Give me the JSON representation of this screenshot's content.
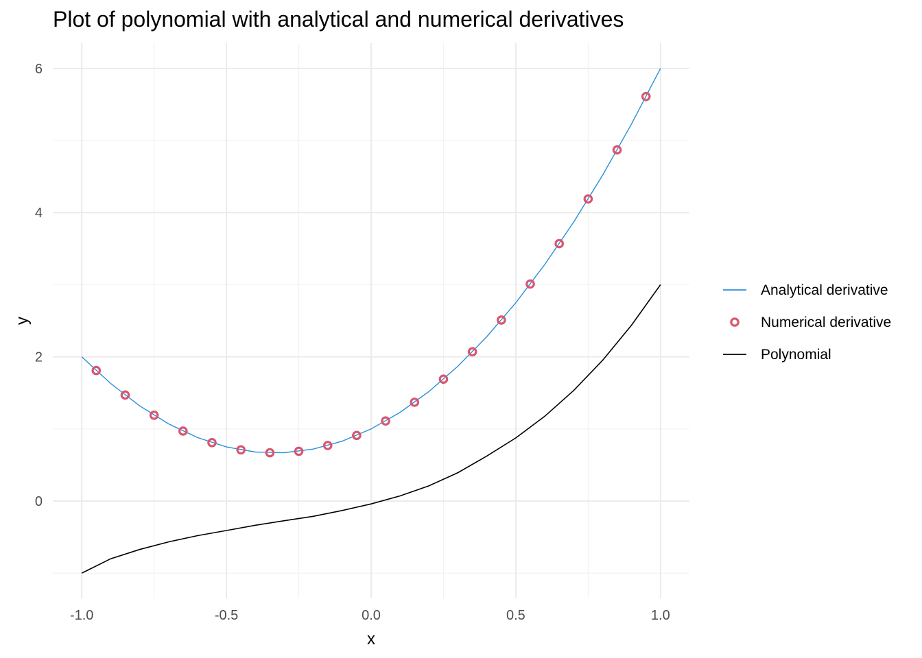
{
  "chart_data": {
    "type": "line",
    "title": "Plot of polynomial with analytical and numerical derivatives",
    "xlabel": "x",
    "ylabel": "y",
    "xlim": [
      -1.1,
      1.1
    ],
    "ylim": [
      -1.35,
      6.35
    ],
    "x_ticks": [
      -1.0,
      -0.5,
      0.0,
      0.5,
      1.0
    ],
    "x_tick_labels": [
      "-1.0",
      "-0.5",
      "0.0",
      "0.5",
      "1.0"
    ],
    "y_ticks": [
      0,
      2,
      4,
      6
    ],
    "y_tick_labels": [
      "0",
      "2",
      "4",
      "6"
    ],
    "grid": true,
    "legend_position": "right",
    "series": [
      {
        "name": "Analytical derivative",
        "kind": "line",
        "color": "#2b8fd6",
        "x": [
          -1.0,
          -0.9,
          -0.8,
          -0.7,
          -0.6,
          -0.5,
          -0.4,
          -0.3,
          -0.2,
          -0.1,
          0.0,
          0.1,
          0.2,
          0.3,
          0.4,
          0.5,
          0.6,
          0.7,
          0.8,
          0.9,
          1.0
        ],
        "y": [
          2.0,
          1.63,
          1.32,
          1.07,
          0.88,
          0.75,
          0.68,
          0.67,
          0.72,
          0.83,
          1.0,
          1.23,
          1.52,
          1.87,
          2.28,
          2.75,
          3.28,
          3.87,
          4.52,
          5.23,
          6.0
        ]
      },
      {
        "name": "Numerical derivative",
        "kind": "points",
        "color": "#d9566f",
        "x": [
          -0.95,
          -0.85,
          -0.75,
          -0.65,
          -0.55,
          -0.45,
          -0.35,
          -0.25,
          -0.15,
          -0.05,
          0.05,
          0.15,
          0.25,
          0.35,
          0.45,
          0.55,
          0.65,
          0.75,
          0.85,
          0.95
        ],
        "y": [
          1.81,
          1.47,
          1.19,
          0.97,
          0.81,
          0.71,
          0.67,
          0.69,
          0.77,
          0.91,
          1.11,
          1.37,
          1.69,
          2.07,
          2.51,
          3.01,
          3.57,
          4.19,
          4.87,
          5.61
        ]
      },
      {
        "name": "Polynomial",
        "kind": "line",
        "color": "#000000",
        "x": [
          -1.0,
          -0.9,
          -0.8,
          -0.7,
          -0.6,
          -0.5,
          -0.4,
          -0.3,
          -0.2,
          -0.1,
          0.0,
          0.1,
          0.2,
          0.3,
          0.4,
          0.5,
          0.6,
          0.7,
          0.8,
          0.9,
          1.0
        ],
        "y": [
          -1.0,
          -0.801,
          -0.672,
          -0.567,
          -0.48,
          -0.409,
          -0.336,
          -0.273,
          -0.212,
          -0.131,
          -0.04,
          0.071,
          0.212,
          0.393,
          0.624,
          0.875,
          1.176,
          1.533,
          1.952,
          2.439,
          3.0
        ]
      }
    ]
  }
}
